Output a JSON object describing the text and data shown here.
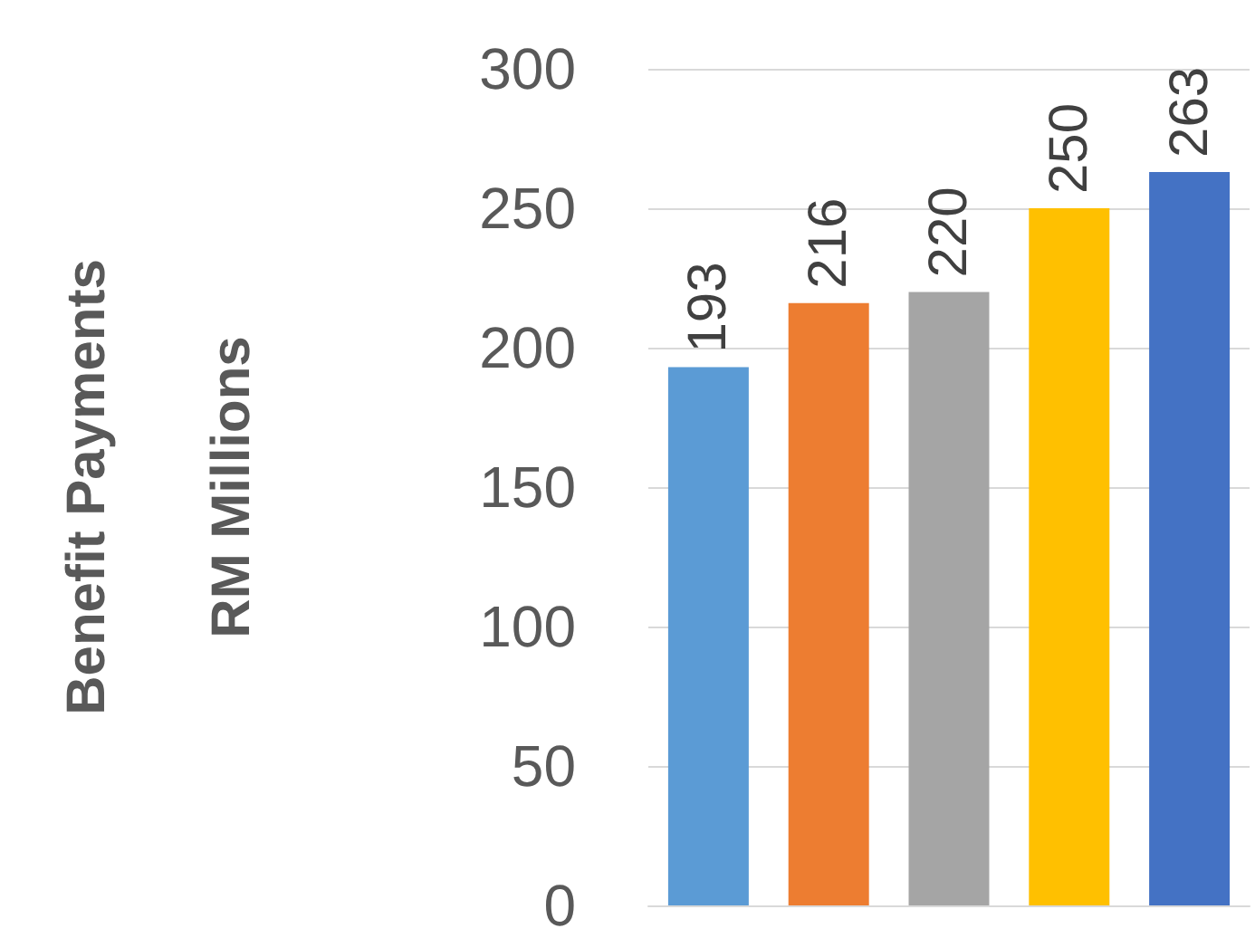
{
  "chart_data": {
    "type": "bar",
    "ylabel": "Benefit Payments\nRM Millions",
    "categories": [
      null,
      null,
      null,
      null,
      null
    ],
    "values": [
      193,
      216,
      220,
      250,
      263
    ],
    "colors": [
      "#5b9bd5",
      "#ed7d31",
      "#a5a5a5",
      "#ffc000",
      "#4472c4"
    ],
    "ylim": [
      0,
      300
    ],
    "yticks": [
      0,
      50,
      100,
      150,
      200,
      250,
      300
    ],
    "grid": "y",
    "data_labels": true
  }
}
